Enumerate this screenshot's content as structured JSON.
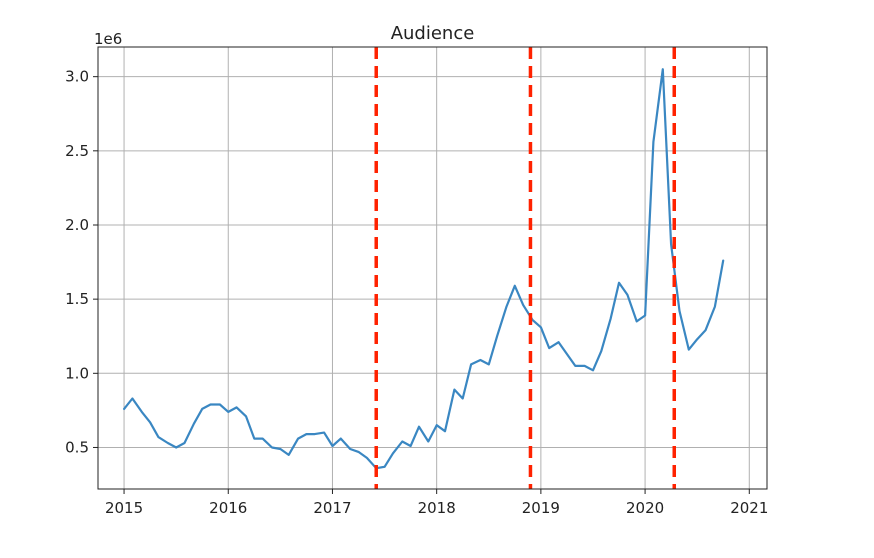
{
  "chart_data": {
    "type": "line",
    "title": "Audience",
    "xlabel": "",
    "ylabel": "",
    "offset_text": "1e6",
    "xlim": [
      2014.75,
      2021.17
    ],
    "ylim": [
      220000,
      3200000
    ],
    "xticks": [
      2015,
      2016,
      2017,
      2018,
      2019,
      2020,
      2021
    ],
    "xtick_labels": [
      "2015",
      "2016",
      "2017",
      "2018",
      "2019",
      "2020",
      "2021"
    ],
    "yticks": [
      500000,
      1000000,
      1500000,
      2000000,
      2500000,
      3000000
    ],
    "ytick_labels": [
      "0.5",
      "1.0",
      "1.5",
      "2.0",
      "2.5",
      "3.0"
    ],
    "grid": true,
    "series": [
      {
        "color": "#3a87c2",
        "x": [
          2015.0,
          2015.08,
          2015.17,
          2015.25,
          2015.33,
          2015.42,
          2015.5,
          2015.58,
          2015.67,
          2015.75,
          2015.83,
          2015.92,
          2016.0,
          2016.08,
          2016.17,
          2016.25,
          2016.33,
          2016.42,
          2016.5,
          2016.58,
          2016.67,
          2016.75,
          2016.83,
          2016.92,
          2017.0,
          2017.08,
          2017.17,
          2017.25,
          2017.33,
          2017.42,
          2017.5,
          2017.58,
          2017.67,
          2017.75,
          2017.83,
          2017.92,
          2018.0,
          2018.08,
          2018.17,
          2018.25,
          2018.33,
          2018.42,
          2018.5,
          2018.58,
          2018.67,
          2018.75,
          2018.83,
          2018.92,
          2019.0,
          2019.08,
          2019.17,
          2019.25,
          2019.33,
          2019.42,
          2019.5,
          2019.58,
          2019.67,
          2019.75,
          2019.83,
          2019.92,
          2020.0,
          2020.08,
          2020.17,
          2020.25,
          2020.33,
          2020.42,
          2020.5,
          2020.58,
          2020.67,
          2020.75,
          2020.83
        ],
        "y": [
          760000,
          830000,
          740000,
          670000,
          570000,
          530000,
          500000,
          530000,
          660000,
          760000,
          790000,
          790000,
          740000,
          770000,
          710000,
          560000,
          560000,
          500000,
          490000,
          450000,
          560000,
          590000,
          590000,
          600000,
          510000,
          560000,
          490000,
          470000,
          430000,
          360000,
          370000,
          460000,
          540000,
          510000,
          640000,
          540000,
          650000,
          610000,
          890000,
          830000,
          1060000,
          1090000,
          1060000,
          1250000,
          1450000,
          1590000,
          1460000,
          1360000,
          1310000,
          1170000,
          1210000,
          1130000,
          1050000,
          1050000,
          1020000,
          1150000,
          1370000,
          1610000,
          1530000,
          1350000,
          1390000,
          2560000,
          3050000,
          1870000,
          1420000,
          1160000,
          1230000,
          1290000,
          1450000,
          1760000,
          null
        ]
      }
    ],
    "vlines": [
      {
        "x": 2017.42,
        "color": "#ff2200",
        "style": "dashed"
      },
      {
        "x": 2018.9,
        "color": "#ff2200",
        "style": "dashed"
      },
      {
        "x": 2020.28,
        "color": "#ff2200",
        "style": "dashed"
      }
    ]
  }
}
